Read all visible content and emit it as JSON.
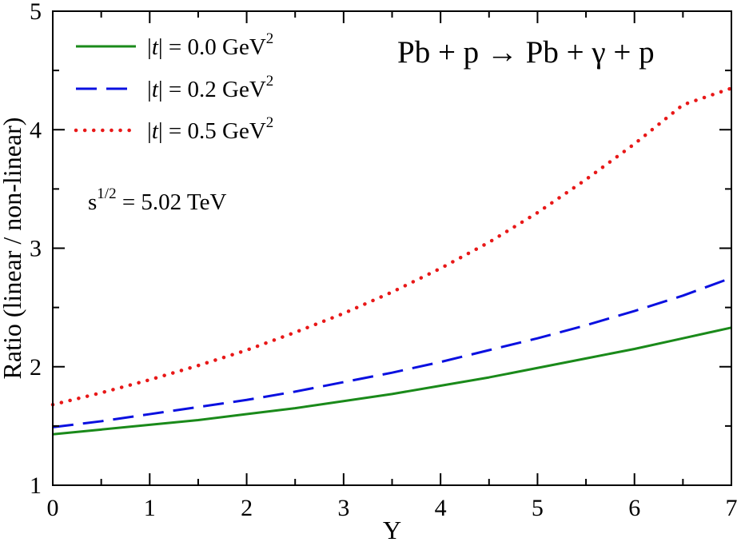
{
  "chart_data": {
    "type": "line",
    "xlabel": "Y",
    "ylabel": "Ratio (linear / non-linear)",
    "xlim": [
      0,
      7
    ],
    "ylim": [
      1,
      5
    ],
    "x_ticks": [
      "0",
      "1",
      "2",
      "3",
      "4",
      "5",
      "6",
      "7"
    ],
    "y_ticks": [
      "1",
      "2",
      "3",
      "4",
      "5"
    ],
    "grid": false,
    "legend_position": "top-left",
    "reaction": "Pb + p → Pb + γ + p",
    "annotation": {
      "prefix": "s",
      "sup": "1/2",
      "suffix": " = 5.02 TeV"
    },
    "x": [
      0,
      0.5,
      1,
      1.5,
      2,
      2.5,
      3,
      3.5,
      4,
      4.5,
      5,
      5.5,
      6,
      6.5,
      7
    ],
    "series": [
      {
        "name": "|t| = 0.0 GeV2",
        "legend": {
          "pre": "|",
          "var": "t",
          "mid": "| = 0.0 GeV",
          "sup": "2"
        },
        "color": "#1a8a1a",
        "style": "solid",
        "values": [
          1.43,
          1.47,
          1.51,
          1.55,
          1.6,
          1.65,
          1.71,
          1.77,
          1.84,
          1.91,
          1.99,
          2.07,
          2.15,
          2.24,
          2.33
        ]
      },
      {
        "name": "|t| = 0.2 GeV2",
        "legend": {
          "pre": "|",
          "var": "t",
          "mid": "| = 0.2 GeV",
          "sup": "2"
        },
        "color": "#0a10e0",
        "style": "dashed",
        "values": [
          1.49,
          1.54,
          1.6,
          1.66,
          1.72,
          1.79,
          1.87,
          1.95,
          2.04,
          2.14,
          2.24,
          2.35,
          2.47,
          2.6,
          2.75
        ]
      },
      {
        "name": "|t| = 0.5 GeV2",
        "legend": {
          "pre": "|",
          "var": "t",
          "mid": "| = 0.5 GeV",
          "sup": "2"
        },
        "color": "#e81818",
        "style": "dotted",
        "values": [
          1.68,
          1.78,
          1.89,
          2.01,
          2.14,
          2.29,
          2.45,
          2.63,
          2.83,
          3.05,
          3.3,
          3.58,
          3.88,
          4.21,
          4.35
        ]
      }
    ]
  }
}
